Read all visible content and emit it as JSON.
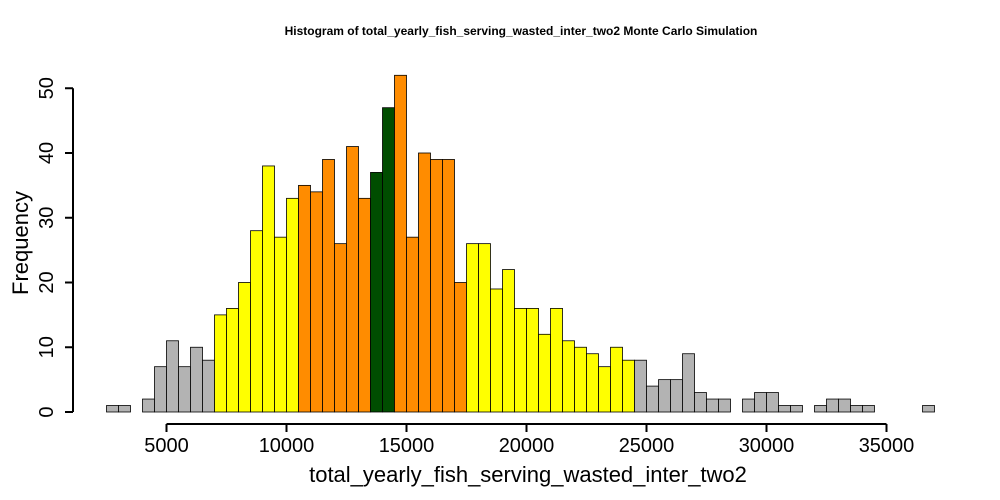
{
  "chart_data": {
    "type": "bar",
    "title": "Histogram of  total_yearly_fish_serving_wasted_inter_two2  Monte Carlo Simulation",
    "xlabel": "total_yearly_fish_serving_wasted_inter_two2",
    "ylabel": "Frequency",
    "bin_width": 500,
    "x_first_bin_start": 2500,
    "xlim": [
      2500,
      37000
    ],
    "ylim": [
      0,
      52
    ],
    "x_ticks": [
      5000,
      10000,
      15000,
      20000,
      25000,
      30000,
      35000
    ],
    "x_tick_labels": [
      "5000",
      "10000",
      "15000",
      "20000",
      "25000",
      "30000",
      "35000"
    ],
    "y_ticks": [
      0,
      10,
      20,
      30,
      40,
      50
    ],
    "y_tick_labels": [
      "0",
      "10",
      "20",
      "30",
      "40",
      "50"
    ],
    "grid": false,
    "legend": "none",
    "colors": {
      "tail": "#b3b3b3",
      "outer": "#ffff00",
      "inner": "#ff8c00",
      "center": "#004d00"
    },
    "bins": [
      {
        "start": 2500,
        "count": 1,
        "band": "tail"
      },
      {
        "start": 3000,
        "count": 1,
        "band": "tail"
      },
      {
        "start": 3500,
        "count": 0,
        "band": "tail"
      },
      {
        "start": 4000,
        "count": 2,
        "band": "tail"
      },
      {
        "start": 4500,
        "count": 7,
        "band": "tail"
      },
      {
        "start": 5000,
        "count": 11,
        "band": "tail"
      },
      {
        "start": 5500,
        "count": 7,
        "band": "tail"
      },
      {
        "start": 6000,
        "count": 10,
        "band": "tail"
      },
      {
        "start": 6500,
        "count": 8,
        "band": "tail"
      },
      {
        "start": 7000,
        "count": 15,
        "band": "outer"
      },
      {
        "start": 7500,
        "count": 16,
        "band": "outer"
      },
      {
        "start": 8000,
        "count": 20,
        "band": "outer"
      },
      {
        "start": 8500,
        "count": 28,
        "band": "outer"
      },
      {
        "start": 9000,
        "count": 38,
        "band": "outer"
      },
      {
        "start": 9500,
        "count": 27,
        "band": "outer"
      },
      {
        "start": 10000,
        "count": 33,
        "band": "outer"
      },
      {
        "start": 10500,
        "count": 35,
        "band": "inner"
      },
      {
        "start": 11000,
        "count": 34,
        "band": "inner"
      },
      {
        "start": 11500,
        "count": 39,
        "band": "inner"
      },
      {
        "start": 12000,
        "count": 26,
        "band": "inner"
      },
      {
        "start": 12500,
        "count": 41,
        "band": "inner"
      },
      {
        "start": 13000,
        "count": 33,
        "band": "inner"
      },
      {
        "start": 13500,
        "count": 37,
        "band": "center"
      },
      {
        "start": 14000,
        "count": 47,
        "band": "center"
      },
      {
        "start": 14500,
        "count": 52,
        "band": "inner"
      },
      {
        "start": 15000,
        "count": 27,
        "band": "inner"
      },
      {
        "start": 15500,
        "count": 40,
        "band": "inner"
      },
      {
        "start": 16000,
        "count": 39,
        "band": "inner"
      },
      {
        "start": 16500,
        "count": 39,
        "band": "inner"
      },
      {
        "start": 17000,
        "count": 20,
        "band": "inner"
      },
      {
        "start": 17500,
        "count": 26,
        "band": "outer"
      },
      {
        "start": 18000,
        "count": 26,
        "band": "outer"
      },
      {
        "start": 18500,
        "count": 19,
        "band": "outer"
      },
      {
        "start": 19000,
        "count": 22,
        "band": "outer"
      },
      {
        "start": 19500,
        "count": 16,
        "band": "outer"
      },
      {
        "start": 20000,
        "count": 16,
        "band": "outer"
      },
      {
        "start": 20500,
        "count": 12,
        "band": "outer"
      },
      {
        "start": 21000,
        "count": 16,
        "band": "outer"
      },
      {
        "start": 21500,
        "count": 11,
        "band": "outer"
      },
      {
        "start": 22000,
        "count": 10,
        "band": "outer"
      },
      {
        "start": 22500,
        "count": 9,
        "band": "outer"
      },
      {
        "start": 23000,
        "count": 7,
        "band": "outer"
      },
      {
        "start": 23500,
        "count": 10,
        "band": "outer"
      },
      {
        "start": 24000,
        "count": 8,
        "band": "outer"
      },
      {
        "start": 24500,
        "count": 8,
        "band": "tail"
      },
      {
        "start": 25000,
        "count": 4,
        "band": "tail"
      },
      {
        "start": 25500,
        "count": 5,
        "band": "tail"
      },
      {
        "start": 26000,
        "count": 5,
        "band": "tail"
      },
      {
        "start": 26500,
        "count": 9,
        "band": "tail"
      },
      {
        "start": 27000,
        "count": 3,
        "band": "tail"
      },
      {
        "start": 27500,
        "count": 2,
        "band": "tail"
      },
      {
        "start": 28000,
        "count": 2,
        "band": "tail"
      },
      {
        "start": 28500,
        "count": 0,
        "band": "tail"
      },
      {
        "start": 29000,
        "count": 2,
        "band": "tail"
      },
      {
        "start": 29500,
        "count": 3,
        "band": "tail"
      },
      {
        "start": 30000,
        "count": 3,
        "band": "tail"
      },
      {
        "start": 30500,
        "count": 1,
        "band": "tail"
      },
      {
        "start": 31000,
        "count": 1,
        "band": "tail"
      },
      {
        "start": 31500,
        "count": 0,
        "band": "tail"
      },
      {
        "start": 32000,
        "count": 1,
        "band": "tail"
      },
      {
        "start": 32500,
        "count": 2,
        "band": "tail"
      },
      {
        "start": 33000,
        "count": 2,
        "band": "tail"
      },
      {
        "start": 33500,
        "count": 1,
        "band": "tail"
      },
      {
        "start": 34000,
        "count": 1,
        "band": "tail"
      },
      {
        "start": 34500,
        "count": 0,
        "band": "tail"
      },
      {
        "start": 35000,
        "count": 0,
        "band": "tail"
      },
      {
        "start": 35500,
        "count": 0,
        "band": "tail"
      },
      {
        "start": 36000,
        "count": 0,
        "band": "tail"
      },
      {
        "start": 36500,
        "count": 1,
        "band": "tail"
      }
    ]
  }
}
